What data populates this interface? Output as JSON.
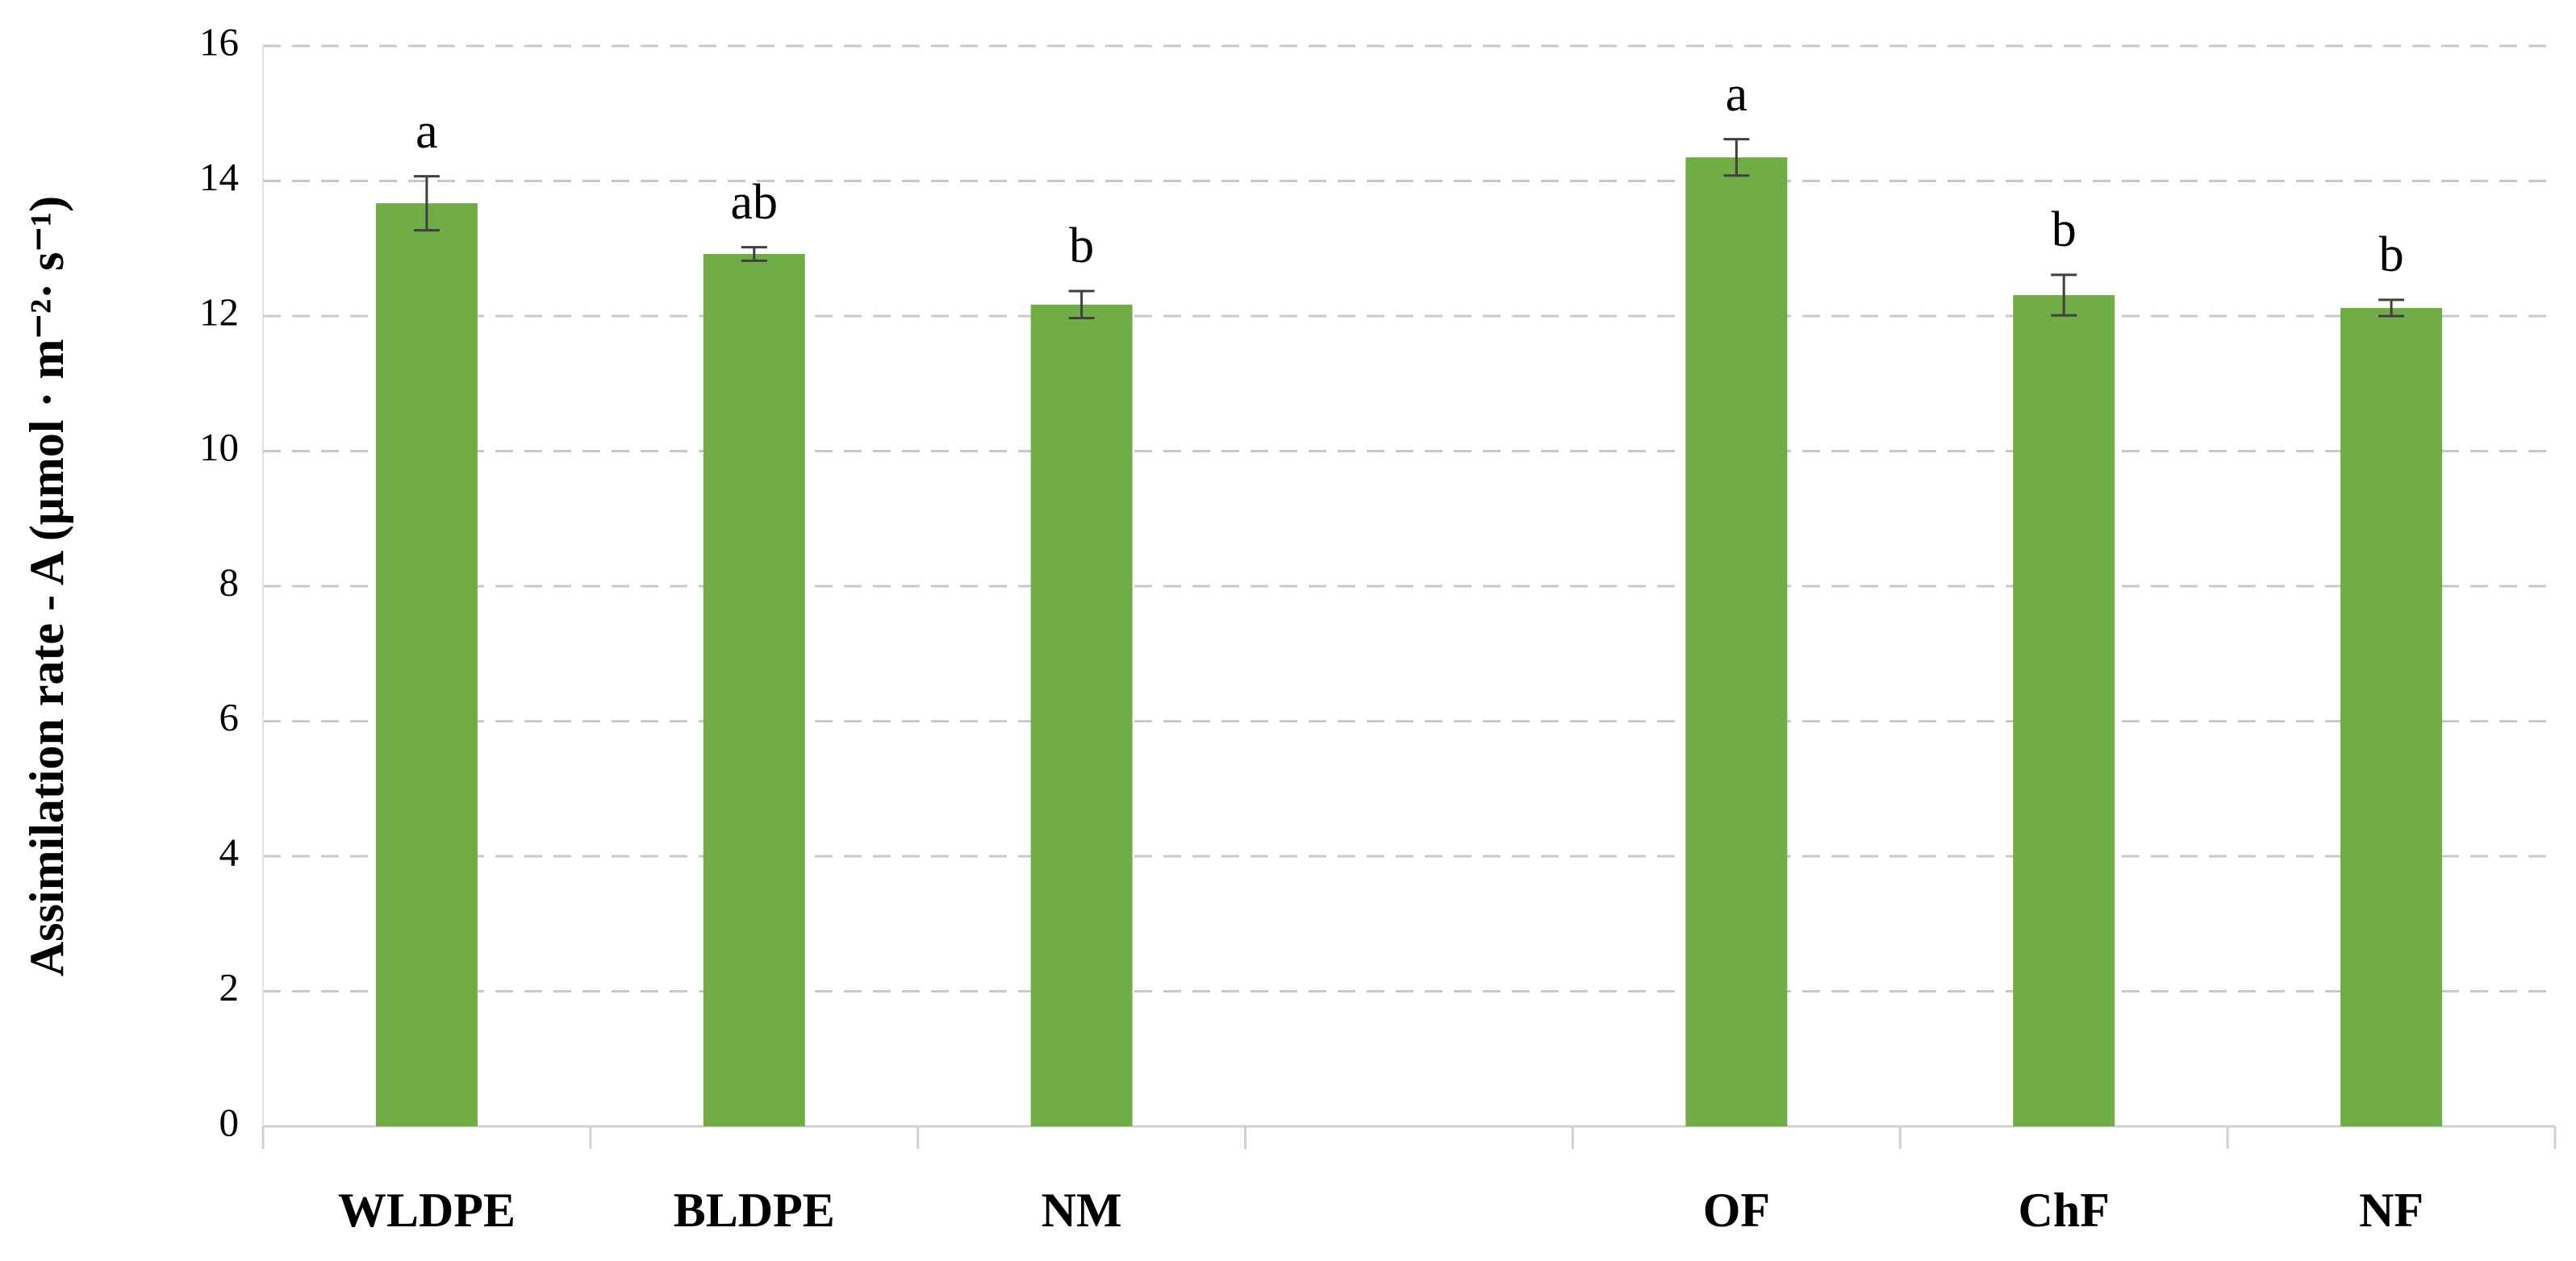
{
  "chart_data": {
    "type": "bar",
    "y_label": "Assimilation  rate  - A (μmol · m⁻²· s⁻¹)",
    "categories": [
      "WLDPE",
      "BLDPE",
      "NM",
      null,
      "OF",
      "ChF",
      "NF"
    ],
    "values": [
      13.67,
      12.92,
      12.17,
      null,
      14.35,
      12.31,
      12.12
    ],
    "errors": [
      0.4,
      0.1,
      0.2,
      null,
      0.27,
      0.3,
      0.12
    ],
    "letters": [
      "a",
      "ab",
      "b",
      null,
      "a",
      "b",
      "b"
    ],
    "color": "#70ad47",
    "ylim": [
      0,
      16
    ],
    "yticks": [
      0,
      2,
      4,
      6,
      8,
      10,
      12,
      14,
      16
    ],
    "grid": true
  }
}
